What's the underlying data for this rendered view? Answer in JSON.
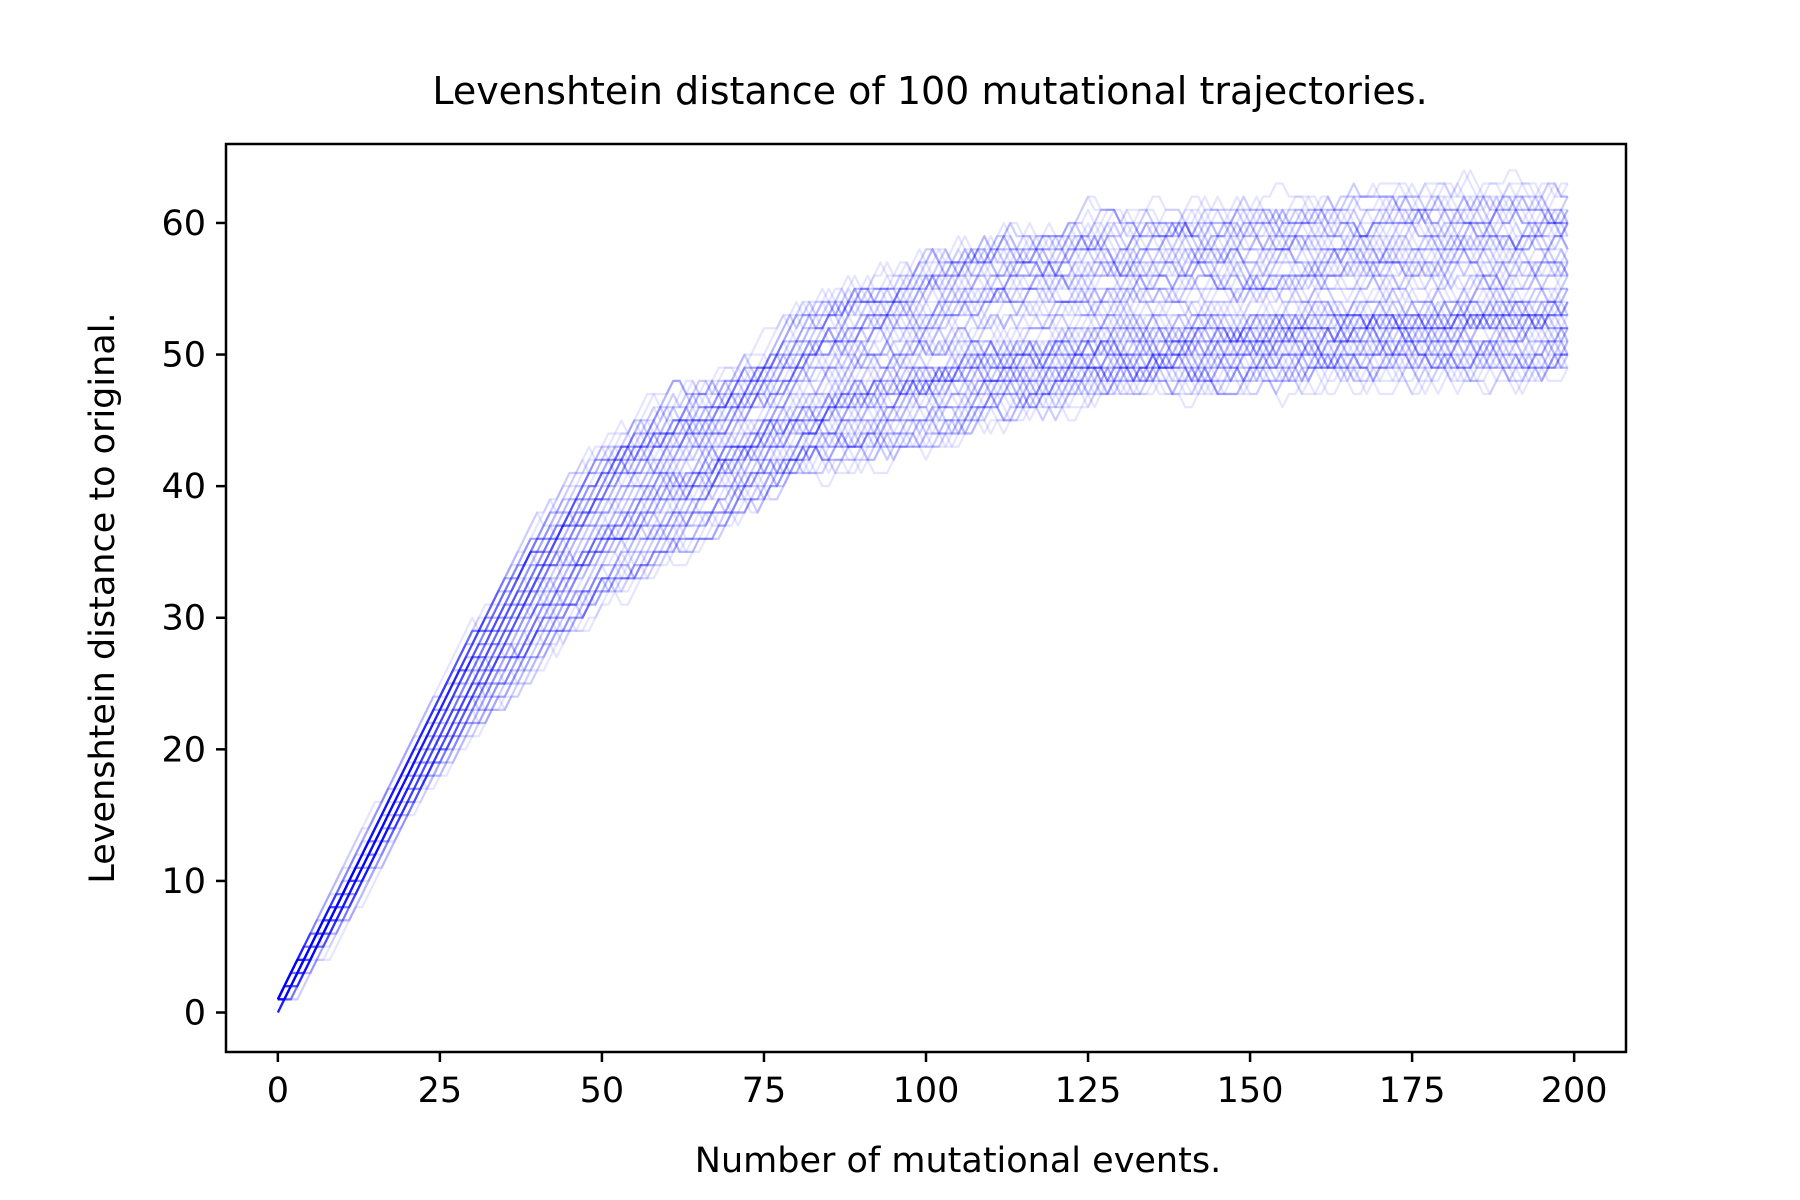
{
  "chart_data": {
    "type": "line",
    "title": "Levenshtein distance of 100 mutational trajectories.",
    "xlabel": "Number of mutational events.",
    "ylabel": "Levenshtein distance to original.",
    "xlim": [
      -8,
      208
    ],
    "ylim": [
      -3,
      66
    ],
    "xticks": [
      0,
      25,
      50,
      75,
      100,
      125,
      150,
      175,
      200
    ],
    "yticks": [
      0,
      10,
      20,
      30,
      40,
      50,
      60
    ],
    "grid": false,
    "legend": "none",
    "line_color": "#0000ff",
    "line_opacity": 0.1,
    "series_count": 100,
    "series_length": 200,
    "envelope": {
      "x": [
        0,
        10,
        20,
        25,
        30,
        40,
        50,
        60,
        70,
        75,
        80,
        90,
        100,
        110,
        125,
        150,
        175,
        199
      ],
      "mean": [
        1,
        9,
        18,
        22,
        26,
        32,
        37,
        40.5,
        43,
        44.5,
        46,
        48,
        49.5,
        50.5,
        51.5,
        52.5,
        53.5,
        54
      ],
      "lower": [
        0,
        7,
        15,
        18,
        21,
        26,
        31,
        34.5,
        38,
        39,
        41,
        42,
        43.5,
        45,
        47,
        48,
        48.5,
        49
      ],
      "upper": [
        1,
        10,
        21,
        25,
        29,
        37,
        42.5,
        46,
        48,
        50,
        53,
        55,
        57,
        59,
        60,
        61,
        62,
        62
      ]
    }
  }
}
